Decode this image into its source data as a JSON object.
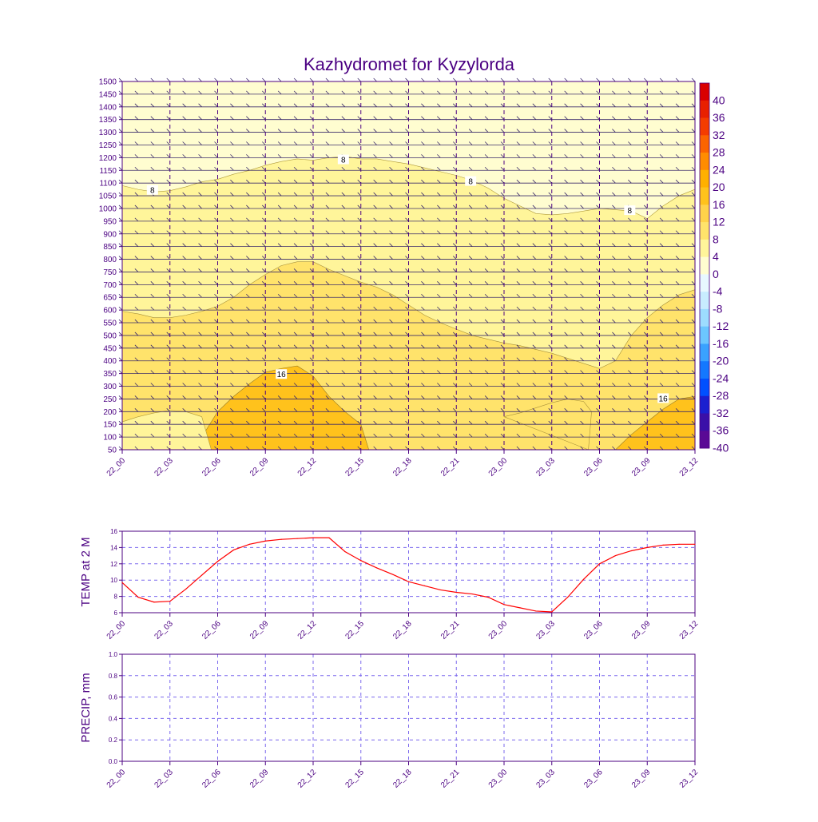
{
  "colors": {
    "ink": "#4b0082",
    "curve": "#ff0000",
    "grid": "#7b68ee",
    "fill_0_4": "#fffdd0",
    "fill_4_8": "#fff59a",
    "fill_8_12": "#ffe36b",
    "fill_12_16": "#ffd24a",
    "fill_16_20": "#ffc21c"
  },
  "chart_data": [
    {
      "type": "heatmap",
      "title": "Kazhydromet for Kyzylorda",
      "xlabel": "",
      "ylabel": "",
      "x_tick_labels": [
        "22_00",
        "22_03",
        "22_06",
        "22_09",
        "22_12",
        "22_15",
        "22_18",
        "22_21",
        "23_00",
        "23_03",
        "23_06",
        "23_09",
        "23_12"
      ],
      "y_tick_labels": [
        "1500",
        "1450",
        "1400",
        "1350",
        "1300",
        "1250",
        "1200",
        "1150",
        "1100",
        "1050",
        "1000",
        "950",
        "900",
        "850",
        "800",
        "750",
        "700",
        "650",
        "600",
        "550",
        "500",
        "450",
        "400",
        "350",
        "300",
        "250",
        "200",
        "150",
        "100",
        "50"
      ],
      "ylim": [
        50,
        1500
      ],
      "colorbar_labels": [
        "40",
        "36",
        "32",
        "28",
        "24",
        "20",
        "16",
        "12",
        "8",
        "4",
        "0",
        "-4",
        "-8",
        "-12",
        "-16",
        "-20",
        "-24",
        "-28",
        "-32",
        "-36",
        "-40"
      ],
      "colorbar_colors": [
        "#d90000",
        "#e82000",
        "#f43c00",
        "#fb6400",
        "#ff8c00",
        "#ffb000",
        "#ffc21c",
        "#ffd24a",
        "#ffe36b",
        "#fff59a",
        "#fffdd0",
        "#e8f8ff",
        "#c8ecff",
        "#9ddcff",
        "#6cc6ff",
        "#3aa2ff",
        "#1478ff",
        "#0050ff",
        "#1a20d0",
        "#3a10a8",
        "#5a0a95"
      ],
      "contour_labels": [
        {
          "text": "8",
          "x": 1.9,
          "y": 1070
        },
        {
          "text": "8",
          "x": 13.9,
          "y": 1190
        },
        {
          "text": "8",
          "x": 21.9,
          "y": 1105
        },
        {
          "text": "8",
          "x": 31.9,
          "y": 990
        },
        {
          "text": "16",
          "x": 10.0,
          "y": 345
        },
        {
          "text": "16",
          "x": 34.0,
          "y": 250
        }
      ],
      "contour_8_line": [
        [
          0,
          1090
        ],
        [
          1,
          1075
        ],
        [
          2,
          1065
        ],
        [
          3,
          1070
        ],
        [
          4,
          1085
        ],
        [
          5,
          1105
        ],
        [
          6,
          1115
        ],
        [
          7,
          1135
        ],
        [
          8,
          1150
        ],
        [
          9,
          1170
        ],
        [
          10,
          1185
        ],
        [
          11,
          1195
        ],
        [
          12,
          1190
        ],
        [
          13,
          1200
        ],
        [
          14,
          1205
        ],
        [
          15,
          1195
        ],
        [
          16,
          1195
        ],
        [
          17,
          1185
        ],
        [
          18,
          1175
        ],
        [
          19,
          1160
        ],
        [
          20,
          1145
        ],
        [
          21,
          1130
        ],
        [
          22,
          1110
        ],
        [
          23,
          1080
        ],
        [
          24,
          1040
        ],
        [
          25,
          1010
        ],
        [
          26,
          980
        ],
        [
          27,
          975
        ],
        [
          28,
          980
        ],
        [
          29,
          990
        ],
        [
          30,
          1000
        ],
        [
          31,
          995
        ],
        [
          32,
          990
        ],
        [
          33,
          960
        ],
        [
          34,
          1010
        ],
        [
          35,
          1050
        ],
        [
          36,
          1075
        ]
      ],
      "contour_12_line": [
        [
          0,
          595
        ],
        [
          1,
          585
        ],
        [
          2,
          570
        ],
        [
          3,
          570
        ],
        [
          4,
          580
        ],
        [
          5,
          595
        ],
        [
          6,
          615
        ],
        [
          7,
          650
        ],
        [
          8,
          700
        ],
        [
          9,
          740
        ],
        [
          10,
          775
        ],
        [
          11,
          790
        ],
        [
          12,
          790
        ],
        [
          13,
          760
        ],
        [
          14,
          735
        ],
        [
          15,
          710
        ],
        [
          16,
          690
        ],
        [
          17,
          660
        ],
        [
          18,
          620
        ],
        [
          19,
          580
        ],
        [
          20,
          550
        ],
        [
          21,
          525
        ],
        [
          22,
          500
        ],
        [
          23,
          485
        ],
        [
          24,
          470
        ],
        [
          25,
          460
        ],
        [
          26,
          445
        ],
        [
          27,
          430
        ],
        [
          28,
          410
        ],
        [
          29,
          390
        ],
        [
          30,
          370
        ],
        [
          31,
          400
        ],
        [
          32,
          500
        ],
        [
          33,
          570
        ],
        [
          34,
          620
        ],
        [
          35,
          660
        ],
        [
          36,
          680
        ]
      ],
      "contour_16_line": [
        [
          4.5,
          50
        ],
        [
          5,
          100
        ],
        [
          6,
          200
        ],
        [
          7,
          260
        ],
        [
          8,
          310
        ],
        [
          9,
          355
        ],
        [
          10,
          370
        ],
        [
          11,
          380
        ],
        [
          12,
          340
        ],
        [
          13,
          260
        ],
        [
          14,
          200
        ],
        [
          15,
          150
        ],
        [
          15.5,
          50
        ]
      ],
      "contour_16_right": [
        [
          31,
          50
        ],
        [
          32,
          110
        ],
        [
          33,
          160
        ],
        [
          34,
          210
        ],
        [
          35,
          250
        ],
        [
          36,
          260
        ]
      ],
      "contour_4_low": [
        [
          0,
          160
        ],
        [
          1,
          180
        ],
        [
          2,
          195
        ],
        [
          3,
          205
        ],
        [
          4,
          200
        ],
        [
          5,
          180
        ],
        [
          5.6,
          50
        ]
      ],
      "contour_4_right": [
        [
          24,
          180
        ],
        [
          25,
          195
        ],
        [
          26,
          215
        ],
        [
          27,
          235
        ],
        [
          28,
          250
        ],
        [
          29,
          240
        ],
        [
          29.5,
          200
        ],
        [
          29.3,
          50
        ]
      ]
    },
    {
      "type": "line",
      "title": "",
      "xlabel": "",
      "ylabel": "TEMP at 2 M",
      "x_tick_labels": [
        "22_00",
        "22_03",
        "22_06",
        "22_09",
        "22_12",
        "22_15",
        "22_18",
        "22_21",
        "23_00",
        "23_03",
        "23_06",
        "23_09",
        "23_12"
      ],
      "y_tick_labels": [
        "16",
        "14",
        "12",
        "10",
        "8",
        "6"
      ],
      "ylim": [
        6,
        16
      ],
      "x": [
        0,
        1,
        2,
        3,
        4,
        5,
        6,
        7,
        8,
        9,
        10,
        11,
        12,
        13,
        14,
        15,
        16,
        17,
        18,
        19,
        20,
        21,
        22,
        23,
        24,
        25,
        26,
        27,
        28,
        29,
        30,
        31,
        32,
        33,
        34,
        35,
        36
      ],
      "values": [
        9.7,
        7.9,
        7.3,
        7.4,
        8.9,
        10.6,
        12.3,
        13.7,
        14.4,
        14.8,
        15.0,
        15.1,
        15.2,
        15.2,
        13.5,
        12.4,
        11.5,
        10.7,
        9.8,
        9.3,
        8.8,
        8.5,
        8.3,
        7.9,
        7.0,
        6.6,
        6.2,
        6.1,
        7.9,
        10.1,
        12.0,
        13.0,
        13.6,
        14.0,
        14.3,
        14.4,
        14.4
      ]
    },
    {
      "type": "bar",
      "title": "",
      "xlabel": "",
      "ylabel": "PRECIP, mm",
      "x_tick_labels": [
        "22_00",
        "22_03",
        "22_06",
        "22_09",
        "22_12",
        "22_15",
        "22_18",
        "22_21",
        "23_00",
        "23_03",
        "23_06",
        "23_09",
        "23_12"
      ],
      "y_tick_labels": [
        "1.0",
        "0.8",
        "0.6",
        "0.4",
        "0.2",
        "0.0"
      ],
      "ylim": [
        0,
        1.0
      ],
      "values": [
        0,
        0,
        0,
        0,
        0,
        0,
        0,
        0,
        0,
        0,
        0,
        0,
        0,
        0,
        0,
        0,
        0,
        0,
        0,
        0,
        0,
        0,
        0,
        0,
        0,
        0,
        0,
        0,
        0,
        0,
        0,
        0,
        0,
        0,
        0,
        0,
        0
      ]
    }
  ]
}
